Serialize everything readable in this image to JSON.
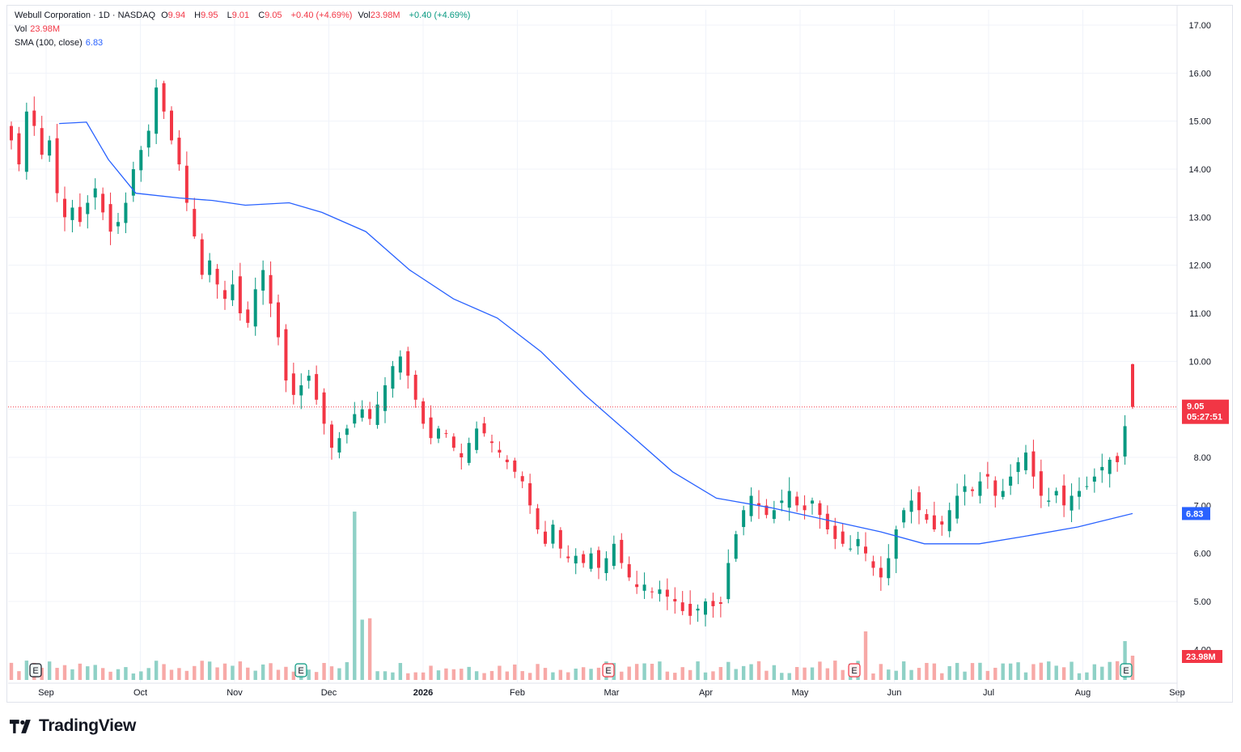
{
  "legend": {
    "symbol": "Webull Corporation · 1D · NASDAQ",
    "o_label": "O",
    "o_val": "9.94",
    "h_label": "H",
    "h_val": "9.95",
    "l_label": "L",
    "l_val": "9.01",
    "c_label": "C",
    "c_val": "9.05",
    "change": "+0.40 (+4.69%)",
    "vol_label": "Vol",
    "vol_val": "23.98M",
    "vol_change": "+0.40 (+4.69%)",
    "vol_line_label": "Vol",
    "vol_line_val": "23.98M",
    "sma_label": "SMA (100, close)",
    "sma_val": "6.83"
  },
  "price_badge": {
    "price": "9.05",
    "countdown": "05:27:51",
    "color": "#f23645"
  },
  "sma_badge": {
    "value": "6.83",
    "color": "#2962ff"
  },
  "vol_badge": {
    "value": "23.98M",
    "color": "#f23645"
  },
  "brand": {
    "name": "TradingView"
  },
  "colors": {
    "up": "#089981",
    "down": "#f23645",
    "sma": "#2962ff",
    "vol_up": "#8fd1c6",
    "vol_down": "#f7a9a7"
  },
  "chart_data": {
    "type": "candlestick",
    "title": "Webull Corporation · 1D · NASDAQ",
    "y_axis": {
      "ticks": [
        "5.00",
        "6.00",
        "7.00",
        "8.00",
        "9.00",
        "10.00",
        "11.00",
        "12.00",
        "13.00",
        "14.00",
        "15.00",
        "16.00",
        "17.00"
      ],
      "range": [
        4.0,
        17.0
      ],
      "partial_bottom_tick": "4.00"
    },
    "x_axis": {
      "labels": [
        "Sep",
        "Oct",
        "Nov",
        "Dec",
        "2026",
        "Feb",
        "Mar",
        "Apr",
        "May",
        "Jun",
        "Jul",
        "Aug",
        "Sep"
      ],
      "bold_labels": [
        "2026"
      ]
    },
    "series": [
      {
        "name": "Price (daily OHLC, approx. closes)",
        "closes": [
          14.6,
          14.1,
          15.2,
          14.9,
          14.3,
          14.6,
          13.5,
          13.0,
          13.2,
          12.9,
          13.3,
          13.6,
          13.1,
          12.7,
          12.9,
          13.3,
          14.0,
          14.4,
          14.8,
          15.7,
          15.2,
          14.6,
          14.1,
          13.3,
          12.6,
          11.8,
          12.1,
          11.6,
          11.3,
          11.6,
          11.0,
          10.8,
          11.5,
          11.9,
          11.2,
          10.5,
          9.6,
          9.3,
          9.5,
          9.7,
          9.2,
          8.7,
          8.2,
          8.4,
          8.6,
          8.9,
          9.0,
          8.8,
          9.1,
          9.5,
          9.9,
          10.1,
          9.7,
          9.2,
          8.7,
          8.4,
          8.6,
          8.5,
          8.2,
          8.0,
          8.3,
          8.6,
          8.5,
          8.3,
          8.1,
          7.9,
          7.7,
          7.5,
          7.0,
          6.5,
          6.2,
          6.6,
          6.1,
          5.9,
          5.95,
          5.8,
          6.0,
          5.7,
          5.9,
          6.2,
          5.8,
          5.5,
          5.3,
          5.35,
          5.2,
          5.25,
          5.1,
          5.0,
          4.8,
          4.7,
          4.85,
          5.0,
          4.9,
          4.95,
          5.8,
          6.4,
          6.9,
          7.2,
          7.0,
          6.8,
          6.9,
          7.1,
          7.3,
          7.0,
          6.9,
          7.1,
          6.8,
          6.5,
          6.3,
          6.2,
          6.1,
          6.3,
          6.0,
          5.7,
          5.5,
          5.9,
          6.5,
          6.9,
          7.1,
          6.9,
          6.7,
          6.5,
          6.6,
          6.9,
          7.2,
          7.4,
          7.3,
          7.5,
          7.6,
          7.2,
          7.3,
          7.6,
          7.9,
          8.1,
          7.6,
          7.2,
          7.1,
          7.3,
          7.0,
          7.2,
          7.3,
          7.4,
          7.6,
          7.8,
          7.95,
          7.9,
          8.65,
          9.05
        ]
      },
      {
        "name": "SMA (100, close)",
        "last": 6.83
      },
      {
        "name": "Vol",
        "last": "23.98M"
      }
    ],
    "earnings_markers": [
      {
        "label": "E",
        "near": "Sep"
      },
      {
        "label": "E",
        "near": "Nov"
      },
      {
        "label": "E",
        "near": "Mar"
      },
      {
        "label": "E",
        "near": "May"
      },
      {
        "label": "E",
        "near": "Aug"
      }
    ],
    "last_price": 9.05,
    "last_bar": {
      "open": 9.94,
      "high": 9.95,
      "low": 9.01,
      "close": 9.05
    },
    "sma_last": 6.83,
    "volume_last": "23.98M"
  }
}
